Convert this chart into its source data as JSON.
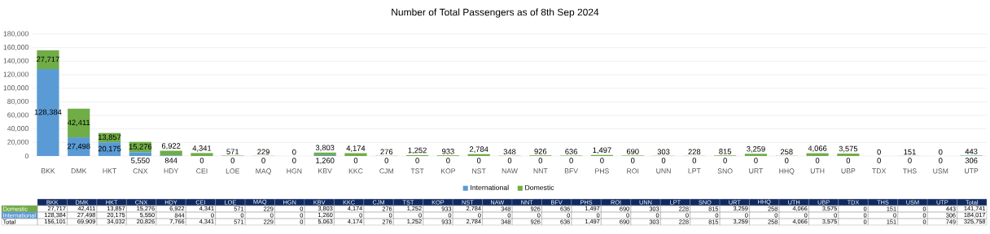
{
  "chart_data": {
    "type": "bar",
    "title": "Number of Total Passengers as of 8th Sep 2024",
    "categories": [
      "BKK",
      "DMK",
      "HKT",
      "CNX",
      "HDY",
      "CEI",
      "LOE",
      "MAQ",
      "HGN",
      "KBV",
      "KKC",
      "CJM",
      "TST",
      "KOP",
      "NST",
      "NAW",
      "NNT",
      "BFV",
      "PHS",
      "ROI",
      "UNN",
      "LPT",
      "SNO",
      "URT",
      "HHQ",
      "UTH",
      "UBP",
      "TDX",
      "THS",
      "USM",
      "UTP"
    ],
    "series": [
      {
        "name": "International",
        "color": "#5b9bd5",
        "values": [
          128384,
          27498,
          20175,
          5550,
          844,
          0,
          0,
          0,
          0,
          1260,
          0,
          0,
          0,
          0,
          0,
          0,
          0,
          0,
          0,
          0,
          0,
          0,
          0,
          0,
          0,
          0,
          0,
          0,
          0,
          0,
          306
        ],
        "value_labels": [
          "128,384",
          "27,498",
          "20,175",
          "5,550",
          "844",
          "0",
          "0",
          "0",
          "0",
          "1,260",
          "0",
          "0",
          "0",
          "0",
          "0",
          "0",
          "0",
          "0",
          "0",
          "0",
          "0",
          "0",
          "0",
          "0",
          "0",
          "0",
          "0",
          "0",
          "0",
          "0",
          "306"
        ]
      },
      {
        "name": "Domestic",
        "color": "#70ad47",
        "values": [
          27717,
          42411,
          13857,
          15276,
          6922,
          4341,
          571,
          229,
          0,
          3803,
          4174,
          276,
          1252,
          933,
          2784,
          348,
          926,
          636,
          1497,
          690,
          303,
          228,
          815,
          3259,
          258,
          4066,
          3575,
          0,
          151,
          0,
          443
        ],
        "value_labels": [
          "27,717",
          "42,411",
          "13,857",
          "15,276",
          "6,922",
          "4,341",
          "571",
          "229",
          "0",
          "3,803",
          "4,174",
          "276",
          "1,252",
          "933",
          "2,784",
          "348",
          "926",
          "636",
          "1,497",
          "690",
          "303",
          "228",
          "815",
          "3,259",
          "258",
          "4,066",
          "3,575",
          "0",
          "151",
          "0",
          "443"
        ]
      }
    ],
    "stacked": true,
    "annotations": [
      "Total",
      "Total",
      "141,741",
      "184,017",
      "325,758",
      "156,101",
      "69,909",
      "34,032",
      "20,826",
      "7,766",
      "4,341",
      "571",
      "229",
      "0",
      "5,063",
      "4,174",
      "276",
      "1,252",
      "933",
      "2,784",
      "348",
      "926",
      "636",
      "1,497",
      "690",
      "303",
      "228",
      "815",
      "3,259",
      "258",
      "4,066",
      "3,575",
      "0",
      "151",
      "0",
      "749"
    ],
    "ylim": [
      0,
      180000
    ],
    "yticks": [
      {
        "value": 0,
        "label": "0"
      },
      {
        "value": 20000,
        "label": "20,000"
      },
      {
        "value": 40000,
        "label": "40,000"
      },
      {
        "value": 60000,
        "label": "60,000"
      },
      {
        "value": 80000,
        "label": "80,000"
      },
      {
        "value": 100000,
        "label": "100,000"
      },
      {
        "value": 120000,
        "label": "120,000"
      },
      {
        "value": 140000,
        "label": "140,000"
      },
      {
        "value": 160000,
        "label": "160,000"
      },
      {
        "value": 180000,
        "label": "180,000"
      }
    ],
    "grid": "y",
    "legend": "bottom"
  }
}
